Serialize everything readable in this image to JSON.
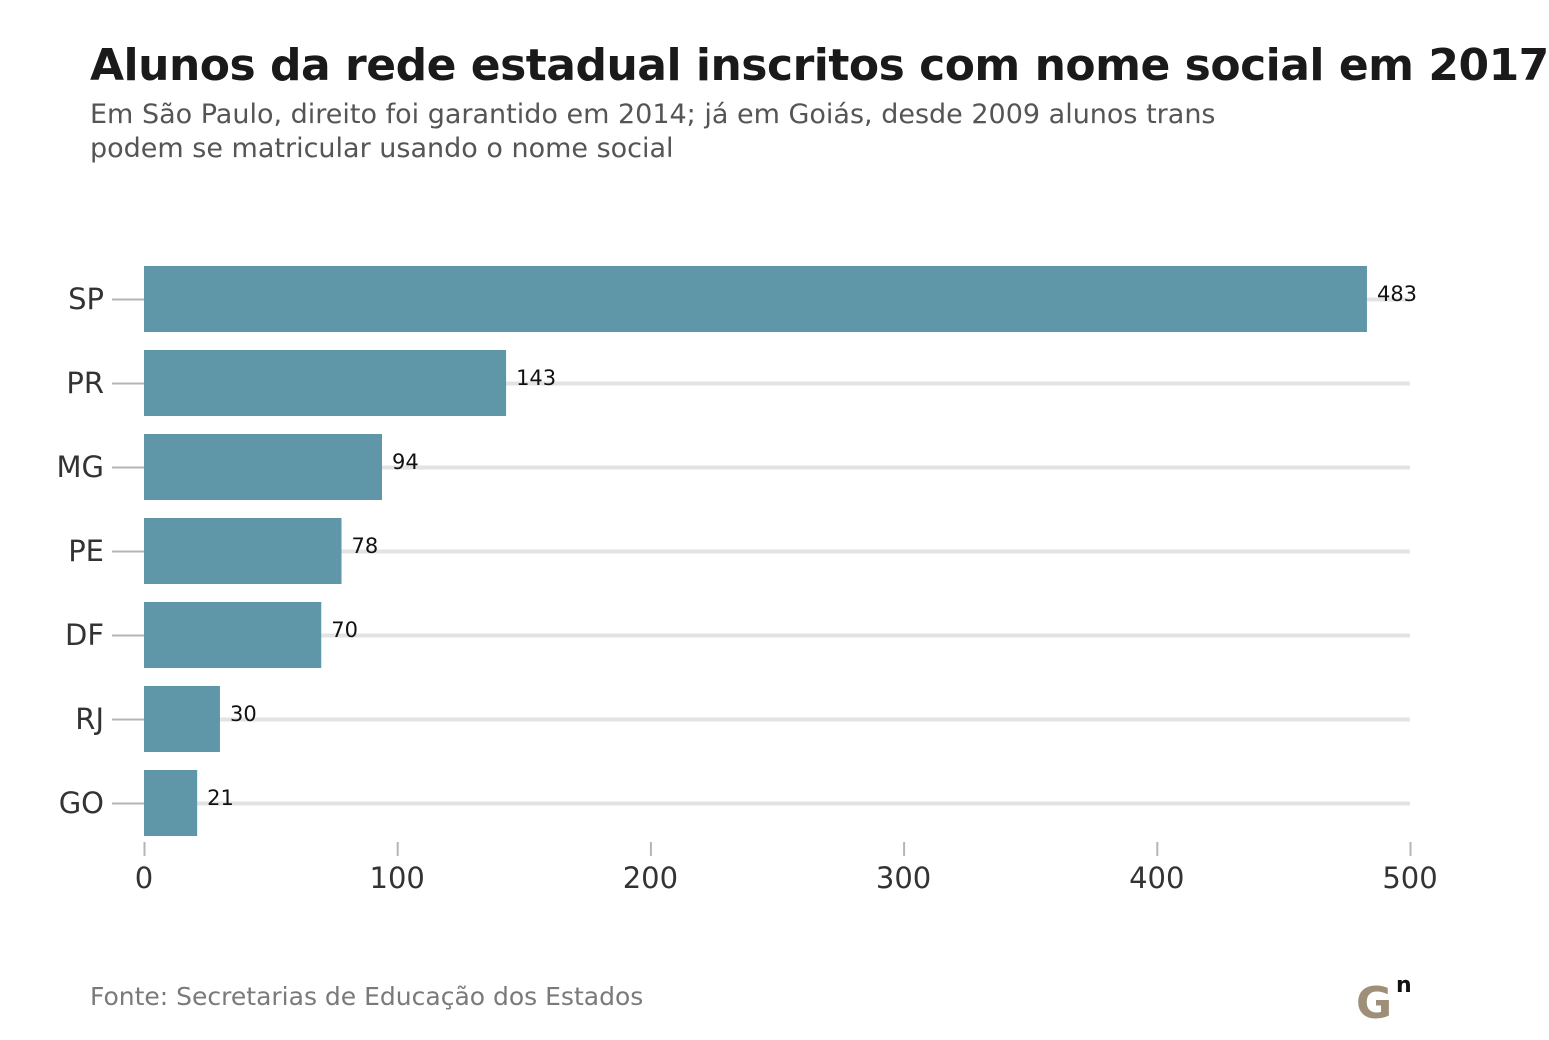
{
  "title": "Alunos da rede estadual inscritos com nome social em 2017",
  "subtitle": "Em São Paulo, direito foi garantido em 2014; já em Goiás, desde 2009 alunos trans podem se matricular usando o nome social",
  "source": "Fonte: Secretarias de Educação dos Estados",
  "logo": {
    "letter": "G",
    "superscript": "n"
  },
  "colors": {
    "bar": "#5f97a9",
    "grid": "#e3e3e3",
    "axis_tick": "#b5b5b5",
    "logo": "#9f8f78"
  },
  "chart_data": {
    "type": "bar",
    "orientation": "horizontal",
    "title": "Alunos da rede estadual inscritos com nome social em 2017",
    "subtitle": "Em São Paulo, direito foi garantido em 2014; já em Goiás, desde 2009 alunos trans podem se matricular usando o nome social",
    "categories": [
      "SP",
      "PR",
      "MG",
      "PE",
      "DF",
      "RJ",
      "GO"
    ],
    "values": [
      483,
      143,
      94,
      78,
      70,
      30,
      21
    ],
    "data_labels": [
      "483",
      "143",
      "94",
      "78",
      "70",
      "30",
      "21"
    ],
    "xlim": [
      0,
      500
    ],
    "xticks": [
      0,
      100,
      200,
      300,
      400,
      500
    ],
    "xtick_labels": [
      "0",
      "100",
      "200",
      "300",
      "400",
      "500"
    ],
    "xlabel": "",
    "ylabel": "",
    "grid": true,
    "legend": false
  }
}
